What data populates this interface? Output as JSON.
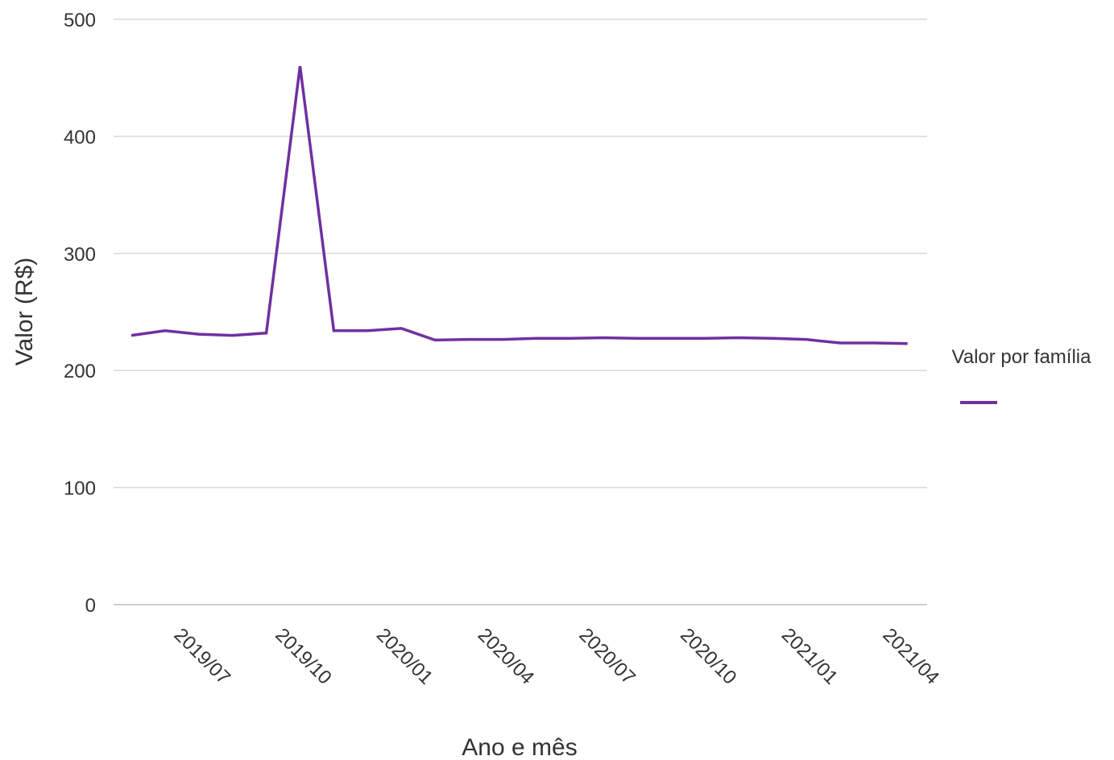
{
  "chart_data": {
    "type": "line",
    "title": "",
    "xlabel": "Ano e mês",
    "ylabel": "Valor (R$)",
    "ylim": [
      0,
      500
    ],
    "yticks": [
      0,
      100,
      200,
      300,
      400,
      500
    ],
    "x": [
      "2019/06",
      "2019/07",
      "2019/08",
      "2019/09",
      "2019/10",
      "2019/11",
      "2019/12",
      "2020/01",
      "2020/02",
      "2020/03",
      "2020/04",
      "2020/05",
      "2020/06",
      "2020/07",
      "2020/08",
      "2020/09",
      "2020/10",
      "2020/11",
      "2020/12",
      "2021/01",
      "2021/02",
      "2021/03",
      "2021/04",
      "2021/05"
    ],
    "xtick_labels": [
      "2019/07",
      "2019/10",
      "2020/01",
      "2020/04",
      "2020/07",
      "2020/10",
      "2021/01",
      "2021/04"
    ],
    "series": [
      {
        "name": "Valor por família",
        "color": "#7030a0",
        "values": [
          230,
          234,
          231,
          230,
          232,
          460,
          234,
          234,
          236,
          226,
          226.5,
          226.5,
          227.5,
          227.5,
          228,
          227.5,
          227.5,
          227.5,
          228,
          227.5,
          226.5,
          223.5,
          223.5,
          223
        ]
      }
    ],
    "grid": true,
    "legend_position": "right",
    "legend_title": "Valor por família"
  }
}
